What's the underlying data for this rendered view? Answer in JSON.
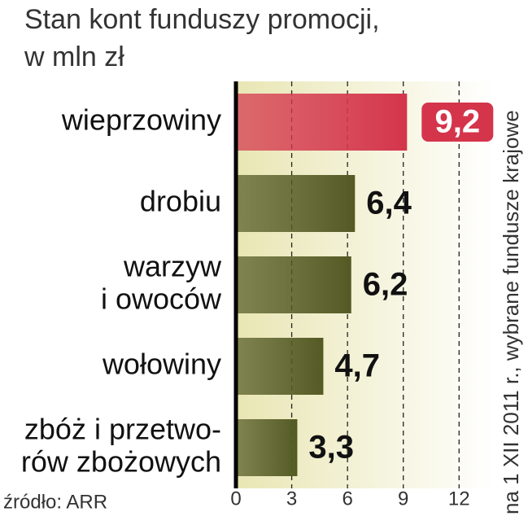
{
  "chart_data": {
    "type": "bar",
    "orientation": "horizontal",
    "title": [
      "Stan kont funduszy promocji,",
      "w mln zł"
    ],
    "categories": [
      [
        "wieprzowiny"
      ],
      [
        "drobiu"
      ],
      [
        "warzyw",
        "i owoców"
      ],
      [
        "wołowiny"
      ],
      [
        "zbóż i przetwo-",
        "rów zbożowych"
      ]
    ],
    "values": [
      9.2,
      6.4,
      6.2,
      4.7,
      3.3
    ],
    "value_labels": [
      "9,2",
      "6,4",
      "6,2",
      "4,7",
      "3,3"
    ],
    "colors": [
      "#d4354b",
      "#545a24",
      "#545a24",
      "#545a24",
      "#545a24"
    ],
    "xlim": [
      0,
      14
    ],
    "xticks": [
      0,
      3,
      6,
      9,
      12
    ],
    "grid": true,
    "source": "źródło: ARR",
    "note": "na 1 XII 2011 r., wybrane fundusze krajowe"
  }
}
